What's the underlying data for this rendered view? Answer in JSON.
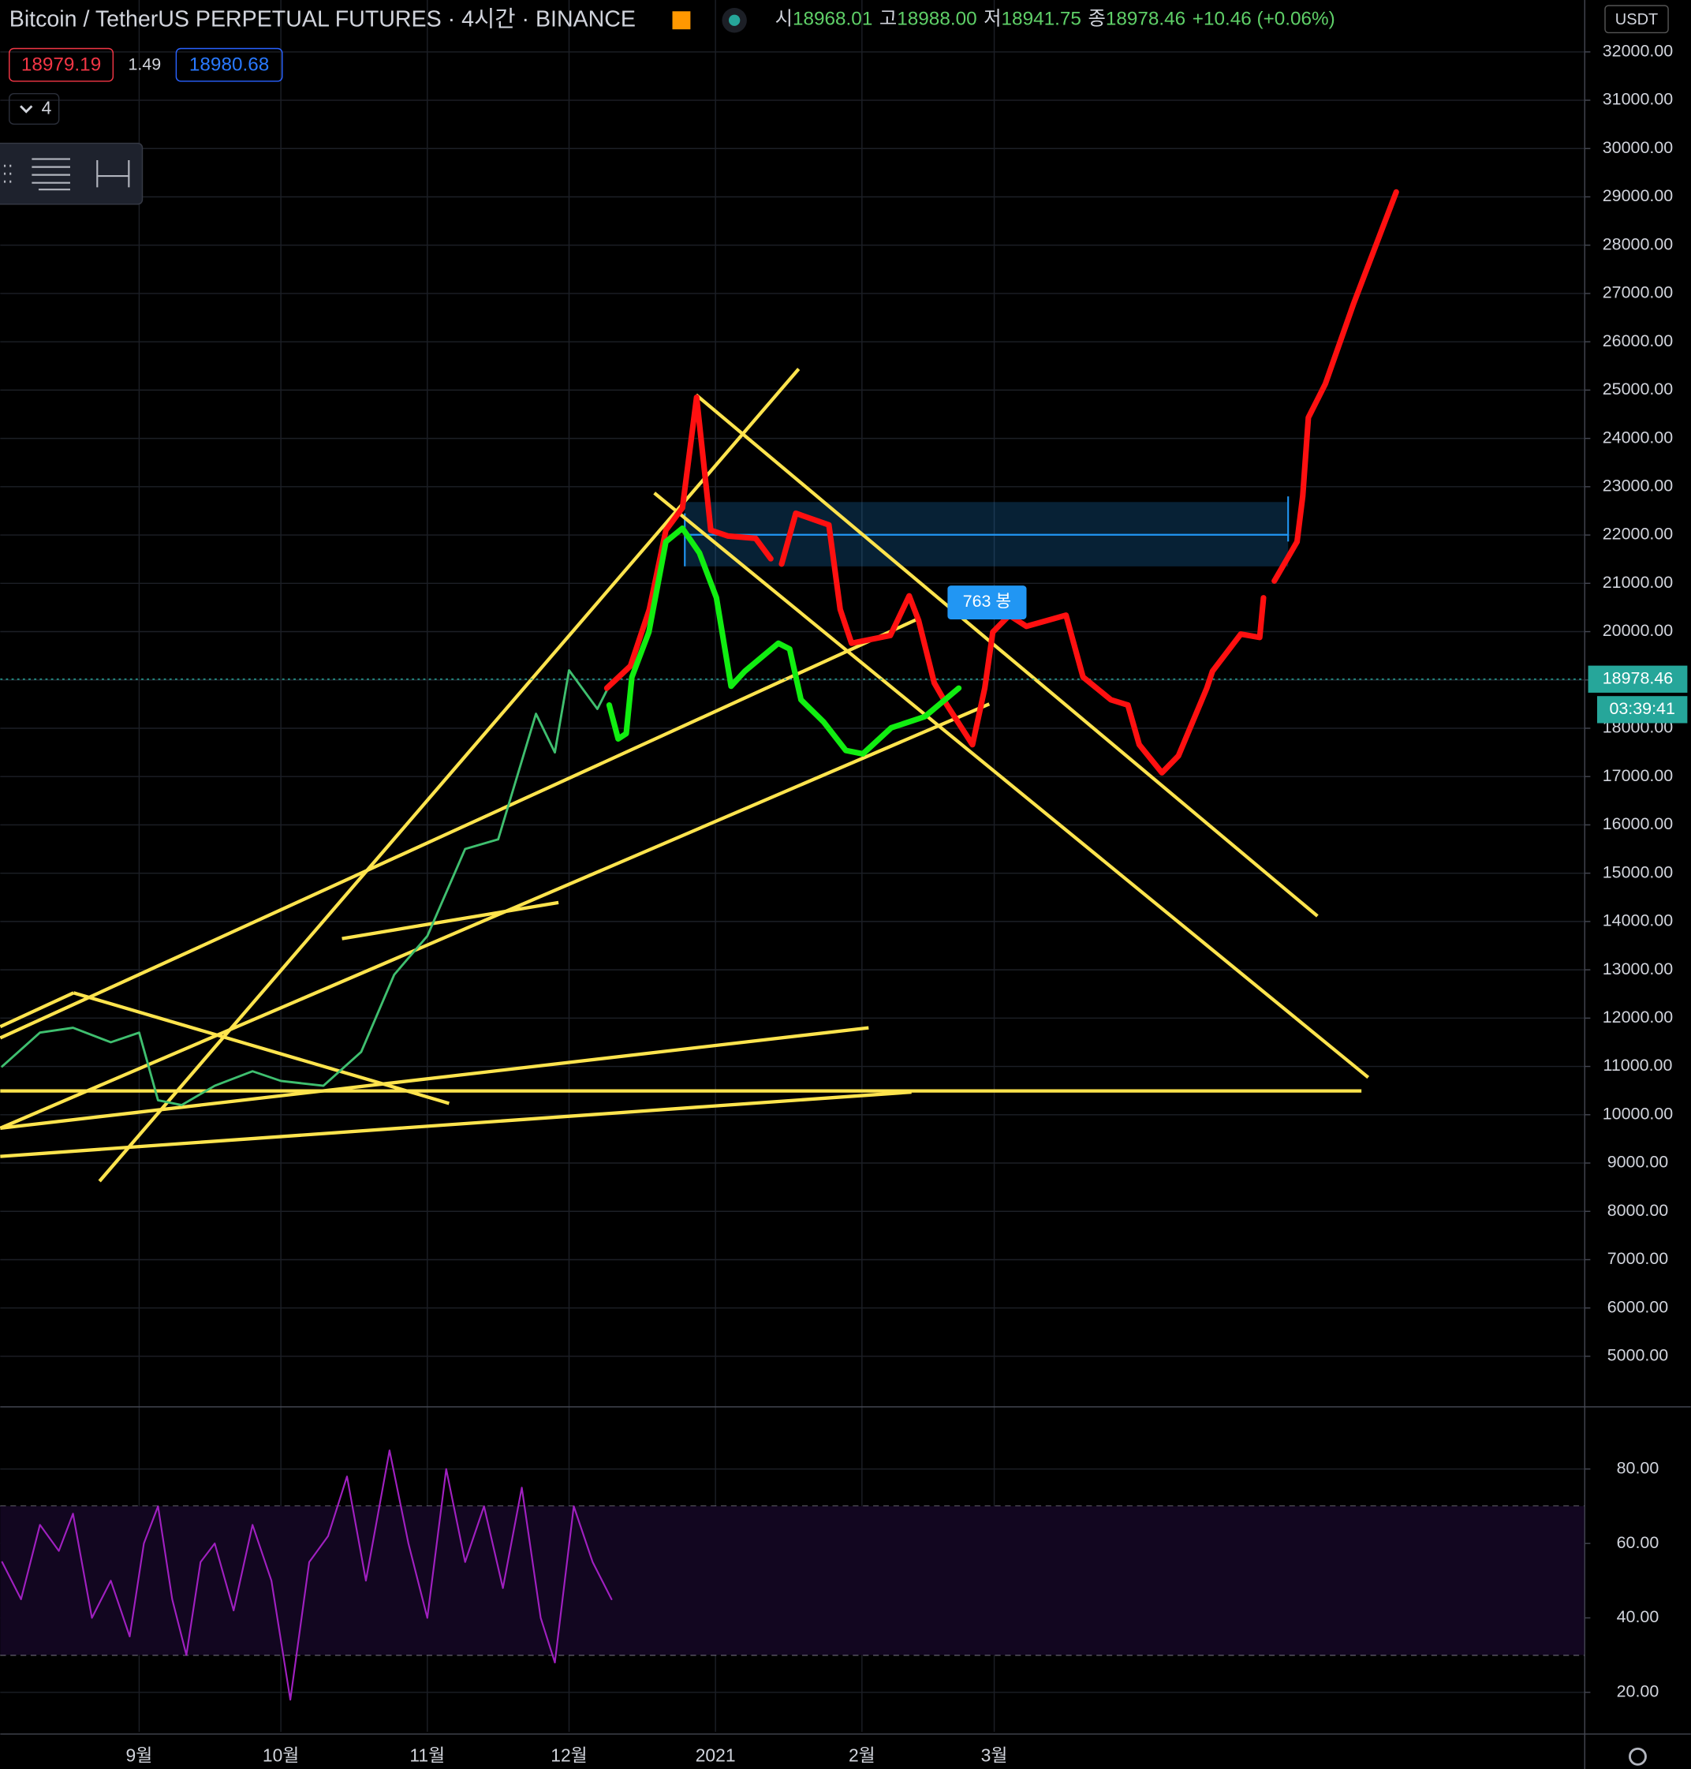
{
  "header": {
    "title": "Bitcoin / TetherUS PERPETUAL FUTURES · 4시간 · BINANCE",
    "ohlc": [
      {
        "label": "시",
        "value": "18968.01"
      },
      {
        "label": "고",
        "value": "18988.00"
      },
      {
        "label": "저",
        "value": "18941.75"
      },
      {
        "label": "종",
        "value": "18978.46"
      }
    ],
    "change": "+10.46 (+0.06%)",
    "bid": "18979.19",
    "spread": "1.49",
    "ask": "18980.68",
    "indicators": "4",
    "currency": "USDT",
    "countdown": "03:39:41",
    "range_label": "763 봉"
  },
  "chart_data": [
    {
      "type": "line",
      "xlim": [
        1.6,
        337
      ],
      "ylim": [
        4000,
        33000
      ],
      "grid": true,
      "yticks": [
        {
          "value": 5000,
          "label": "5000.00"
        },
        {
          "value": 6000,
          "label": "6000.00"
        },
        {
          "value": 7000,
          "label": "7000.00"
        },
        {
          "value": 8000,
          "label": "8000.00"
        },
        {
          "value": 9000,
          "label": "9000.00"
        },
        {
          "value": 10000,
          "label": "10000.00"
        },
        {
          "value": 11000,
          "label": "11000.00"
        },
        {
          "value": 12000,
          "label": "12000.00"
        },
        {
          "value": 13000,
          "label": "13000.00"
        },
        {
          "value": 14000,
          "label": "14000.00"
        },
        {
          "value": 15000,
          "label": "15000.00"
        },
        {
          "value": 16000,
          "label": "16000.00"
        },
        {
          "value": 17000,
          "label": "17000.00"
        },
        {
          "value": 18000,
          "label": "18000.00"
        },
        {
          "value": 19000,
          "label": "19000.00"
        },
        {
          "value": 20000,
          "label": "20000.00"
        },
        {
          "value": 21000,
          "label": "21000.00"
        },
        {
          "value": 22000,
          "label": "22000.00"
        },
        {
          "value": 23000,
          "label": "23000.00"
        },
        {
          "value": 24000,
          "label": "24000.00"
        },
        {
          "value": 25000,
          "label": "25000.00"
        },
        {
          "value": 26000,
          "label": "26000.00"
        },
        {
          "value": 27000,
          "label": "27000.00"
        },
        {
          "value": 28000,
          "label": "28000.00"
        },
        {
          "value": 29000,
          "label": "29000.00"
        },
        {
          "value": 30000,
          "label": "30000.00"
        },
        {
          "value": 31000,
          "label": "31000.00"
        },
        {
          "value": 32000,
          "label": "32000.00"
        }
      ],
      "series": [
        {
          "color": "#3fbf6f",
          "width": 2,
          "x": [
            2,
            10,
            17,
            25,
            31,
            35,
            40,
            47,
            55,
            61,
            70,
            78,
            85,
            92,
            100,
            107,
            115,
            119,
            122,
            128,
            131
          ],
          "values": [
            11000,
            11700,
            11800,
            11500,
            11700,
            10300,
            10200,
            10600,
            10900,
            10700,
            10600,
            11300,
            12900,
            13700,
            15500,
            15700,
            18300,
            17500,
            19200,
            18400,
            18978.46
          ]
        },
        {
          "color": "#ff1010",
          "width": 5,
          "x": [
            130,
            135,
            139,
            142.5,
            146,
            149,
            151,
            152,
            155.6,
            161.5,
            164.7,
            166,
            167,
            170,
            177,
            179.4,
            181.8,
            190,
            194,
            196,
            199.3,
            202,
            207.4,
            210,
            211.7,
            215.2,
            218.8,
            227.2,
            230.8,
            236.7,
            240.3,
            242.7,
            247.5,
            251,
            257,
            258.2,
            264.2,
            268.2,
            269,
            270,
            271.3,
            276.1,
            277.3,
            278.5,
            282.1,
            288,
            297.1
          ],
          "values": [
            18830,
            19290,
            20460,
            22100,
            22560,
            24850,
            23030,
            22100,
            21980,
            21930,
            21510,
            null,
            21400,
            22450,
            22210,
            20460,
            19760,
            19920,
            20740,
            20230,
            18940,
            18480,
            17660,
            18830,
            19990,
            20340,
            20110,
            20340,
            19060,
            18590,
            18480,
            17660,
            17080,
            17430,
            18830,
            19180,
            19950,
            19880,
            20700,
            null,
            21050,
            21860,
            22800,
            24430,
            25130,
            26770,
            29100
          ]
        },
        {
          "color": "#11ee11",
          "width": 5,
          "x": [
            130.5,
            132.4,
            134.1,
            135.3,
            138.9,
            142.5,
            146,
            149.6,
            153.2,
            156.3,
            159.2,
            166.3,
            168.7,
            171.1,
            175.9,
            180.6,
            184.2,
            190.2,
            197.3,
            204.5
          ],
          "values": [
            18480,
            17780,
            17890,
            19060,
            19990,
            21860,
            22140,
            21630,
            20700,
            18870,
            19180,
            19760,
            19640,
            18590,
            18130,
            17540,
            17470,
            18010,
            18240,
            18830
          ]
        }
      ]
    },
    {
      "type": "line",
      "xlim": [
        1.6,
        337
      ],
      "ylim": [
        9.4,
        96.4
      ],
      "grid": true,
      "bands": [
        30,
        70
      ],
      "yticks": [
        {
          "value": 20,
          "label": "20.00"
        },
        {
          "value": 40,
          "label": "40.00"
        },
        {
          "value": 60,
          "label": "60.00"
        },
        {
          "value": 80,
          "label": "80.00"
        }
      ],
      "xticks": [
        {
          "value": 31,
          "label": "9월"
        },
        {
          "value": 61,
          "label": "10월"
        },
        {
          "value": 92,
          "label": "11월"
        },
        {
          "value": 122,
          "label": "12월"
        },
        {
          "value": 153,
          "label": "2021"
        },
        {
          "value": 184,
          "label": "2월"
        },
        {
          "value": 212,
          "label": "3월"
        }
      ],
      "series": [
        {
          "color": "#a020c0",
          "width": 1.5,
          "x": [
            2,
            6,
            10,
            14,
            17,
            21,
            25,
            29,
            32,
            35,
            38,
            41,
            44,
            47,
            51,
            55,
            59,
            63,
            67,
            71,
            75,
            79,
            84,
            88,
            92,
            96,
            100,
            104,
            108,
            112,
            116,
            119,
            123,
            127,
            131
          ],
          "values": [
            55,
            45,
            65,
            58,
            68,
            40,
            50,
            35,
            60,
            70,
            45,
            30,
            55,
            60,
            42,
            65,
            50,
            18,
            55,
            62,
            78,
            50,
            85,
            60,
            40,
            80,
            55,
            70,
            48,
            75,
            40,
            28,
            70,
            55,
            45
          ]
        }
      ]
    }
  ]
}
